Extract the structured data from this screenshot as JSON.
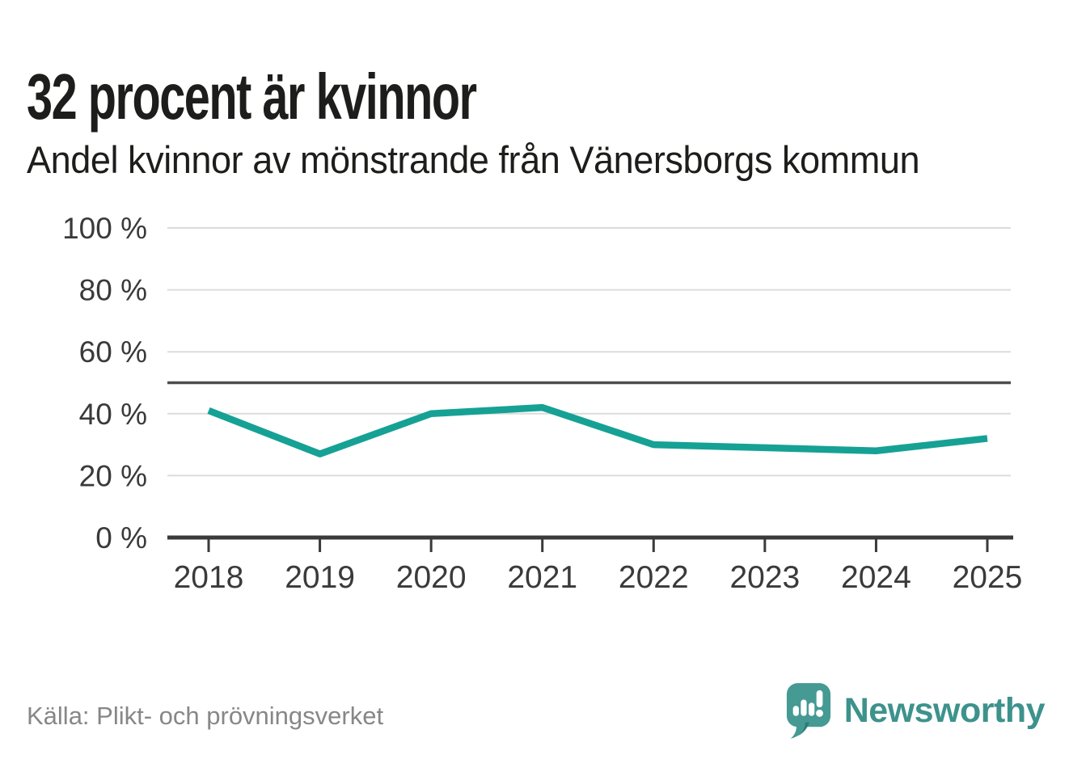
{
  "chart_data": {
    "type": "line",
    "title": "32 procent är kvinnor",
    "subtitle": "Andel kvinnor av mönstrande från Vänersborgs kommun",
    "categories": [
      "2018",
      "2019",
      "2020",
      "2021",
      "2022",
      "2023",
      "2024",
      "2025"
    ],
    "series": [
      {
        "name": "Andel kvinnor av mönstrande",
        "color": "#16a195",
        "values": [
          41,
          27,
          40,
          42,
          30,
          29,
          28,
          32
        ]
      }
    ],
    "ylim": [
      0,
      100
    ],
    "y_ticks": [
      {
        "value": 0,
        "label": "0 %"
      },
      {
        "value": 20,
        "label": "20 %"
      },
      {
        "value": 40,
        "label": "40 %"
      },
      {
        "value": 60,
        "label": "60 %"
      },
      {
        "value": 80,
        "label": "80 %"
      },
      {
        "value": 100,
        "label": "100 %"
      }
    ],
    "reference_line": {
      "value": 50,
      "color": "#4d4d4d"
    },
    "grid": true,
    "legend_position": "none"
  },
  "footer": {
    "source": "Källa: Plikt- och prövningsverket",
    "logo_text": "Newsworthy"
  },
  "colors": {
    "line": "#16a195",
    "grid": "#dcdcdc",
    "axis": "#3a3a3a",
    "reference_line": "#4d4d4d",
    "title_text": "#1d1d1b",
    "source_text": "#878787",
    "logo_mark": "#459a93",
    "logo_mark_shadow": "#2e7e78",
    "logo_text": "#3d928c"
  },
  "icons": {
    "logo_mark": "newsworthy-speech-bubble-bar-chart-icon"
  }
}
